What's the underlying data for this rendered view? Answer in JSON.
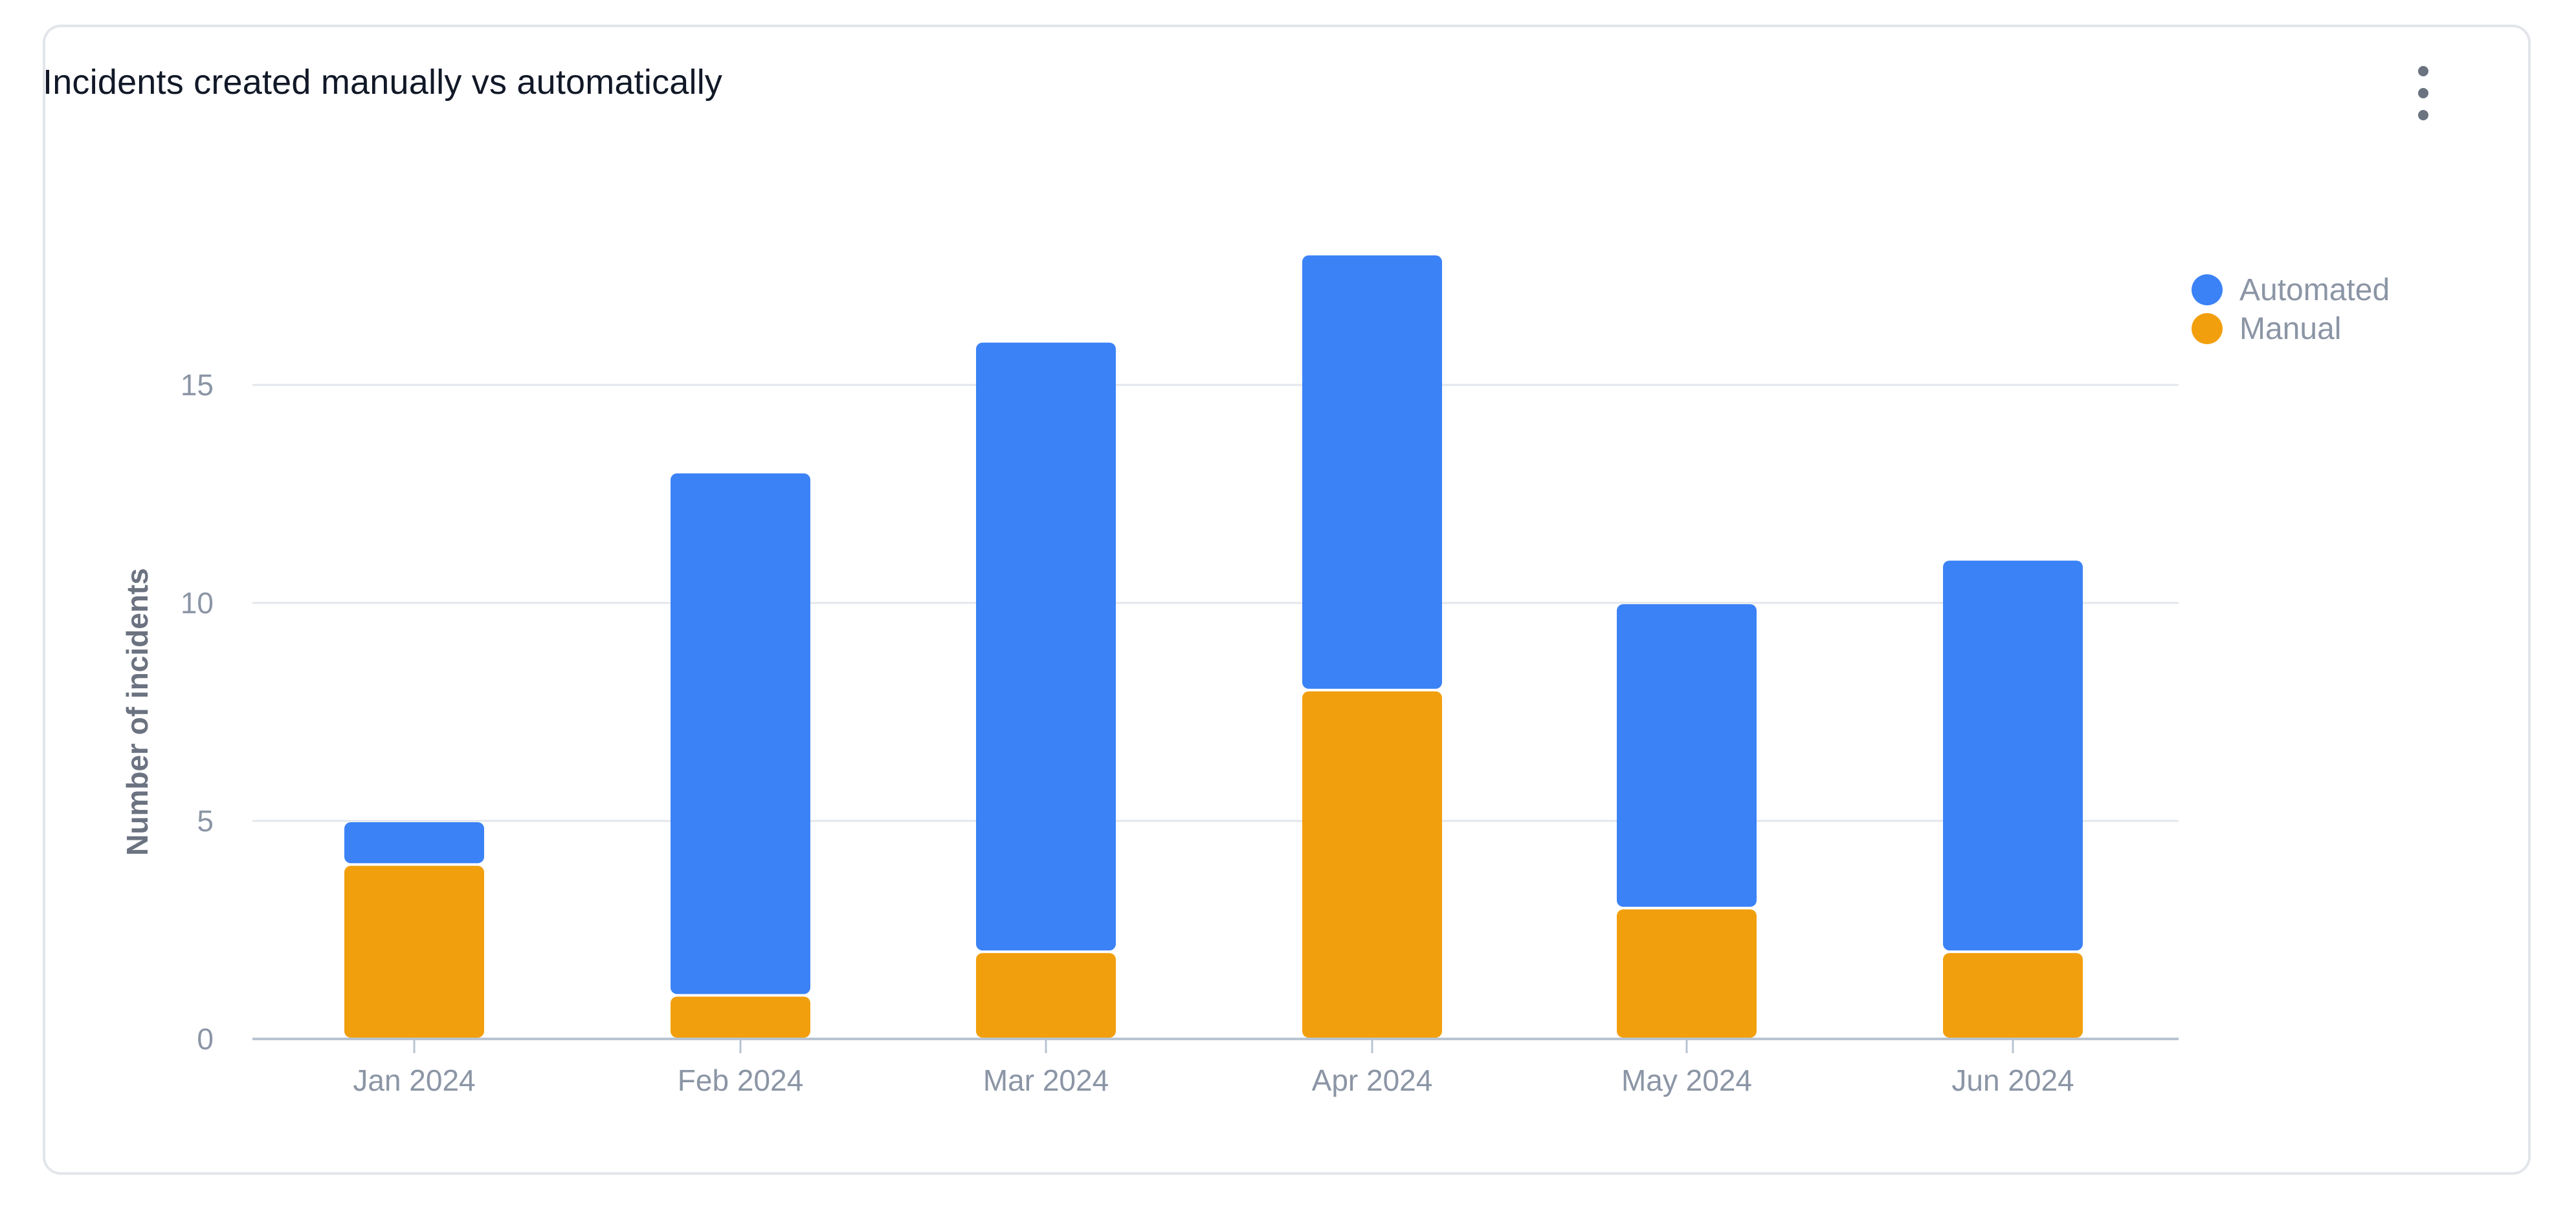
{
  "card": {
    "title": "Incidents created manually vs automatically",
    "menu_icon": "more-vertical-icon"
  },
  "colors": {
    "automated": "#3b82f6",
    "manual": "#f29f0e",
    "grid": "#e3e7ec",
    "axis_text": "#8b95a5",
    "axis_title": "#6b7280"
  },
  "legend": {
    "items": [
      {
        "label": "Automated",
        "color": "#3b82f6"
      },
      {
        "label": "Manual",
        "color": "#f29f0e"
      }
    ]
  },
  "chart_data": {
    "type": "bar",
    "stacked": true,
    "title": "Incidents created manually vs automatically",
    "xlabel": "",
    "ylabel": "Number of incidents",
    "categories": [
      "Jan 2024",
      "Feb 2024",
      "Mar 2024",
      "Apr 2024",
      "May 2024",
      "Jun 2024"
    ],
    "series": [
      {
        "name": "Manual",
        "values": [
          4,
          1,
          2,
          8,
          3,
          2
        ]
      },
      {
        "name": "Automated",
        "values": [
          1,
          12,
          14,
          10,
          7,
          9
        ]
      }
    ],
    "ylim": [
      0,
      18
    ],
    "yticks": [
      0,
      5,
      10,
      15
    ],
    "grid": true,
    "legend_position": "top-right"
  }
}
